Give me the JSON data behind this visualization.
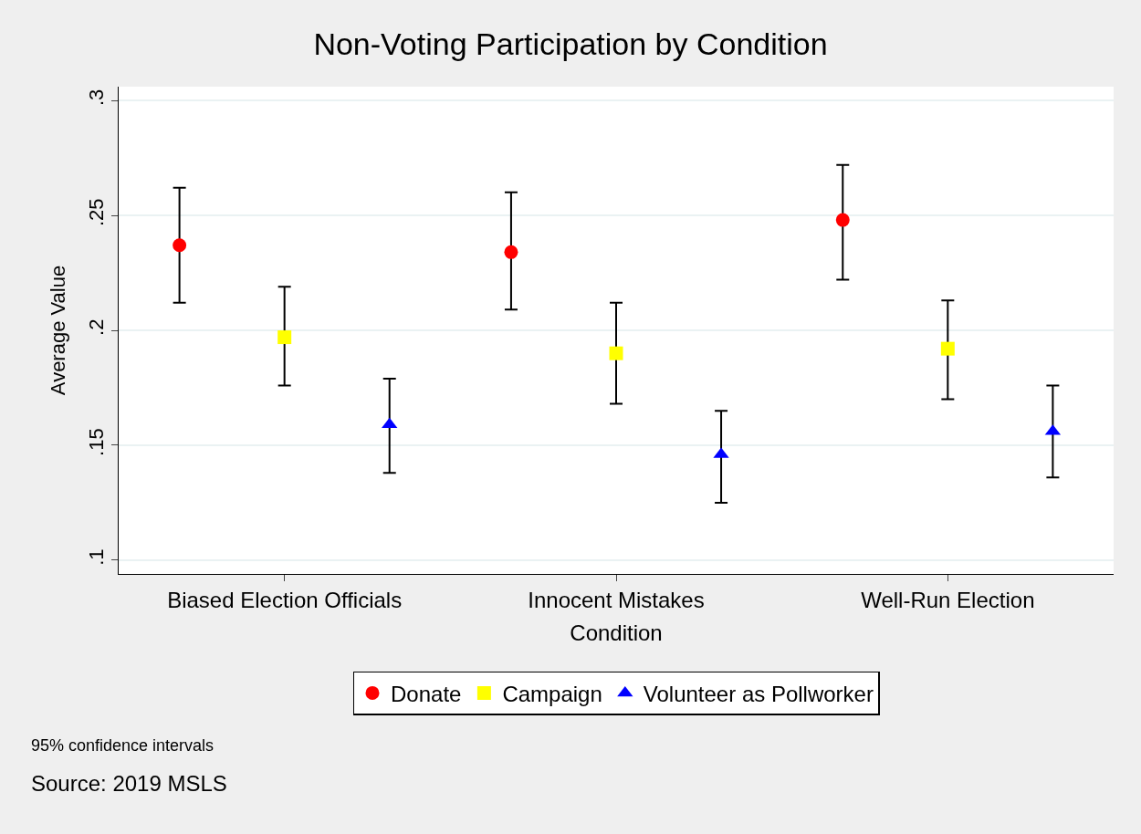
{
  "chart_data": {
    "type": "scatter",
    "title": "Non-Voting Participation by Condition",
    "xlabel": "Condition",
    "ylabel": "Average Value",
    "categories": [
      "Biased Election Officials",
      "Innocent Mistakes",
      "Well-Run Election"
    ],
    "series": [
      {
        "name": "Donate",
        "color": "#ff0000",
        "marker": "circle",
        "values": [
          0.237,
          0.234,
          0.248
        ],
        "errors": [
          [
            0.212,
            0.262
          ],
          [
            0.209,
            0.26
          ],
          [
            0.222,
            0.272
          ]
        ]
      },
      {
        "name": "Campaign",
        "color": "#ffff00",
        "marker": "square",
        "values": [
          0.197,
          0.19,
          0.192
        ],
        "errors": [
          [
            0.176,
            0.219
          ],
          [
            0.168,
            0.212
          ],
          [
            0.17,
            0.213
          ]
        ]
      },
      {
        "name": "Volunteer as Pollworker",
        "color": "#0000ff",
        "marker": "triangle",
        "values": [
          0.159,
          0.146,
          0.156
        ],
        "errors": [
          [
            0.138,
            0.179
          ],
          [
            0.125,
            0.165
          ],
          [
            0.136,
            0.176
          ]
        ]
      }
    ],
    "ylim": [
      0.094,
      0.306
    ],
    "yticks": [
      {
        "value": 0.1,
        "label": ".1"
      },
      {
        "value": 0.15,
        "label": ".15"
      },
      {
        "value": 0.2,
        "label": ".2"
      },
      {
        "value": 0.25,
        "label": ".25"
      },
      {
        "value": 0.3,
        "label": ".3"
      }
    ],
    "grid": "y",
    "legend": "bottom",
    "annotations": [
      "95% confidence intervals",
      "Source: 2019 MSLS"
    ]
  }
}
